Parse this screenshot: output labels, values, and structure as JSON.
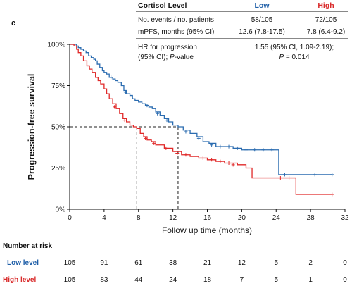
{
  "panel_label": "c",
  "table": {
    "header": [
      "Cortisol Level",
      "Low",
      "High"
    ],
    "rows": [
      [
        "No. events / no. patients",
        "58/105",
        "72/105"
      ],
      [
        "mPFS, months (95% CI)",
        "12.6 (7.8-17.5)",
        "7.8 (6.4-9.2)"
      ]
    ],
    "hr": {
      "label_line1": "HR for progression",
      "label_line2a": "(95% CI); ",
      "label_line2b": "P",
      "label_line2c": "-value",
      "value_line1": "1.55 (95% CI, 1.09-2.19);",
      "value_line2a": "P",
      "value_line2b": " = 0.014"
    }
  },
  "risk_table": {
    "title": "Number at risk",
    "rows": [
      {
        "label": "Low level",
        "color": "#1f5fa8",
        "values": [
          "105",
          "91",
          "61",
          "38",
          "21",
          "12",
          "5",
          "2",
          "0"
        ]
      },
      {
        "label": "High level",
        "color": "#d92b2b",
        "values": [
          "105",
          "83",
          "44",
          "24",
          "18",
          "7",
          "5",
          "1",
          "0"
        ]
      }
    ]
  },
  "colors": {
    "low": "#2b6cb0",
    "high": "#e02828"
  },
  "chart_data": {
    "type": "line",
    "step": true,
    "xlabel": "Follow up time (months)",
    "ylabel": "Progression-free survival",
    "xlim": [
      0,
      32
    ],
    "ylim": [
      0,
      1
    ],
    "xticks": [
      0,
      4,
      8,
      12,
      16,
      20,
      24,
      28,
      32
    ],
    "xtick_labels": [
      "0",
      "4",
      "8",
      "12",
      "16",
      "20",
      "24",
      "28",
      "32"
    ],
    "yticks": [
      0,
      0.25,
      0.5,
      0.75,
      1.0
    ],
    "ytick_labels": [
      "0%",
      "25%",
      "50%",
      "75%",
      "100%"
    ],
    "reference_lines": {
      "y": 0.5,
      "median_low": 12.6,
      "median_high": 7.8
    },
    "series": [
      {
        "name": "Low",
        "color": "#2b6cb0",
        "points": [
          [
            0,
            1.0
          ],
          [
            0.5,
            1.0
          ],
          [
            0.8,
            0.99
          ],
          [
            1.0,
            0.98
          ],
          [
            1.3,
            0.97
          ],
          [
            1.6,
            0.96
          ],
          [
            1.9,
            0.95
          ],
          [
            2.2,
            0.93
          ],
          [
            2.5,
            0.92
          ],
          [
            2.8,
            0.91
          ],
          [
            3.0,
            0.9
          ],
          [
            3.2,
            0.88
          ],
          [
            3.5,
            0.86
          ],
          [
            3.8,
            0.84
          ],
          [
            4.0,
            0.83
          ],
          [
            4.3,
            0.82
          ],
          [
            4.6,
            0.8
          ],
          [
            5.0,
            0.79
          ],
          [
            5.3,
            0.78
          ],
          [
            5.6,
            0.77
          ],
          [
            6.0,
            0.75
          ],
          [
            6.3,
            0.72
          ],
          [
            6.6,
            0.7
          ],
          [
            7.0,
            0.69
          ],
          [
            7.3,
            0.67
          ],
          [
            7.6,
            0.66
          ],
          [
            8.0,
            0.65
          ],
          [
            8.4,
            0.64
          ],
          [
            8.8,
            0.63
          ],
          [
            9.2,
            0.62
          ],
          [
            9.6,
            0.61
          ],
          [
            10.0,
            0.59
          ],
          [
            10.5,
            0.57
          ],
          [
            11.0,
            0.55
          ],
          [
            11.5,
            0.53
          ],
          [
            12.0,
            0.51
          ],
          [
            12.6,
            0.5
          ],
          [
            13.2,
            0.48
          ],
          [
            14.0,
            0.46
          ],
          [
            14.8,
            0.44
          ],
          [
            15.5,
            0.41
          ],
          [
            16.2,
            0.4
          ],
          [
            17.0,
            0.38
          ],
          [
            18.0,
            0.38
          ],
          [
            19.0,
            0.37
          ],
          [
            20.0,
            0.36
          ],
          [
            21.5,
            0.36
          ],
          [
            23.0,
            0.36
          ],
          [
            24.0,
            0.36
          ],
          [
            24.3,
            0.21
          ],
          [
            30.5,
            0.21
          ]
        ],
        "censored": [
          [
            4.8,
            0.8
          ],
          [
            6.5,
            0.71
          ],
          [
            9.0,
            0.63
          ],
          [
            10.2,
            0.58
          ],
          [
            11.3,
            0.54
          ],
          [
            13.5,
            0.47
          ],
          [
            15.0,
            0.43
          ],
          [
            16.5,
            0.39
          ],
          [
            17.5,
            0.38
          ],
          [
            18.5,
            0.38
          ],
          [
            19.5,
            0.37
          ],
          [
            20.5,
            0.36
          ],
          [
            21.5,
            0.36
          ],
          [
            22.5,
            0.36
          ],
          [
            23.5,
            0.36
          ],
          [
            25.0,
            0.21
          ],
          [
            28.5,
            0.21
          ],
          [
            30.5,
            0.21
          ]
        ]
      },
      {
        "name": "High",
        "color": "#e02828",
        "points": [
          [
            0,
            1.0
          ],
          [
            0.5,
            0.99
          ],
          [
            0.8,
            0.97
          ],
          [
            1.0,
            0.95
          ],
          [
            1.3,
            0.93
          ],
          [
            1.6,
            0.9
          ],
          [
            2.0,
            0.87
          ],
          [
            2.3,
            0.85
          ],
          [
            2.6,
            0.83
          ],
          [
            3.0,
            0.8
          ],
          [
            3.3,
            0.78
          ],
          [
            3.6,
            0.76
          ],
          [
            4.0,
            0.73
          ],
          [
            4.3,
            0.7
          ],
          [
            4.6,
            0.67
          ],
          [
            5.0,
            0.64
          ],
          [
            5.4,
            0.61
          ],
          [
            5.8,
            0.58
          ],
          [
            6.2,
            0.55
          ],
          [
            6.6,
            0.53
          ],
          [
            7.0,
            0.51
          ],
          [
            7.4,
            0.5
          ],
          [
            7.8,
            0.49
          ],
          [
            8.2,
            0.46
          ],
          [
            8.6,
            0.44
          ],
          [
            9.0,
            0.42
          ],
          [
            9.5,
            0.41
          ],
          [
            10.0,
            0.39
          ],
          [
            11.0,
            0.37
          ],
          [
            12.0,
            0.35
          ],
          [
            13.0,
            0.33
          ],
          [
            14.0,
            0.32
          ],
          [
            15.0,
            0.31
          ],
          [
            16.0,
            0.3
          ],
          [
            17.0,
            0.29
          ],
          [
            18.0,
            0.28
          ],
          [
            19.5,
            0.27
          ],
          [
            20.5,
            0.25
          ],
          [
            21.2,
            0.19
          ],
          [
            24.0,
            0.19
          ],
          [
            26.0,
            0.19
          ],
          [
            26.3,
            0.09
          ],
          [
            30.5,
            0.09
          ]
        ],
        "censored": [
          [
            5.2,
            0.62
          ],
          [
            6.4,
            0.54
          ],
          [
            8.8,
            0.43
          ],
          [
            9.8,
            0.4
          ],
          [
            11.2,
            0.37
          ],
          [
            12.5,
            0.34
          ],
          [
            13.5,
            0.33
          ],
          [
            15.5,
            0.31
          ],
          [
            16.5,
            0.3
          ],
          [
            17.5,
            0.29
          ],
          [
            18.5,
            0.28
          ],
          [
            19.0,
            0.27
          ],
          [
            24.5,
            0.19
          ],
          [
            25.5,
            0.19
          ],
          [
            30.5,
            0.09
          ]
        ]
      }
    ]
  }
}
